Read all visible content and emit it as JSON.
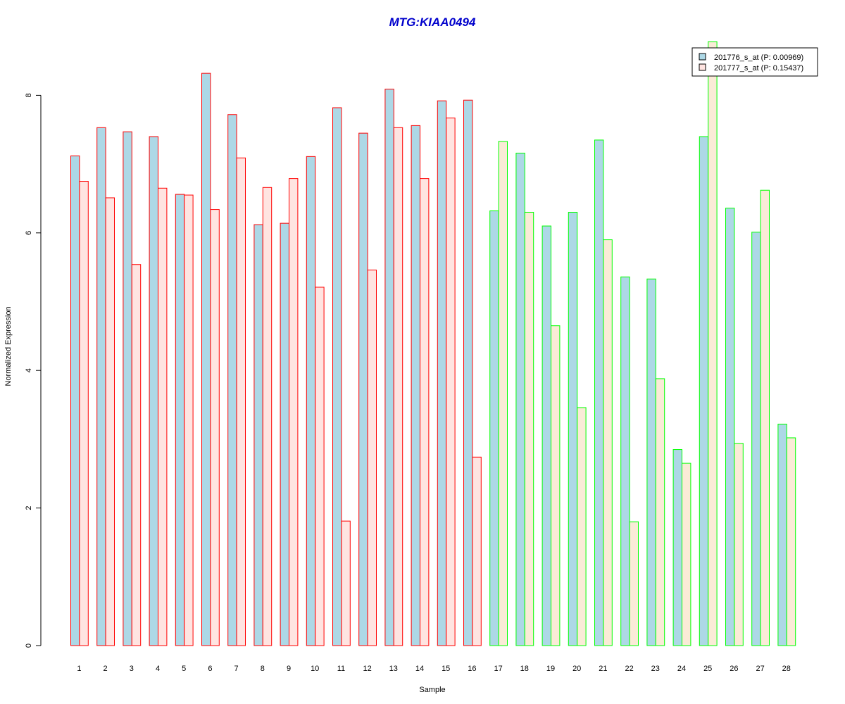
{
  "colors": {
    "title": "#0000CC",
    "series1_fill": "#ADD8E6",
    "series2_red_fill": "#FFE4E1",
    "series2_green_fill": "#FAEBD7",
    "group1_border": "#FF0000",
    "group2_border": "#00FF00",
    "axis": "#000000"
  },
  "chart_data": {
    "type": "bar",
    "title": "MTG:KIAA0494",
    "xlabel": "Sample",
    "ylabel": "Normalized Expression",
    "ylim": [
      0,
      9
    ],
    "yticks": [
      0,
      2,
      4,
      6,
      8
    ],
    "categories": [
      "1",
      "2",
      "3",
      "4",
      "5",
      "6",
      "7",
      "8",
      "9",
      "10",
      "11",
      "12",
      "13",
      "14",
      "15",
      "16",
      "17",
      "18",
      "19",
      "20",
      "21",
      "22",
      "23",
      "24",
      "25",
      "26",
      "27",
      "28"
    ],
    "group_border": [
      "red",
      "red",
      "red",
      "red",
      "red",
      "red",
      "red",
      "red",
      "red",
      "red",
      "red",
      "red",
      "red",
      "red",
      "red",
      "red",
      "green",
      "green",
      "green",
      "green",
      "green",
      "green",
      "green",
      "green",
      "green",
      "green",
      "green",
      "green"
    ],
    "series": [
      {
        "name": "201776_s_at (P: 0.00969)",
        "values": [
          7.12,
          7.53,
          7.47,
          7.4,
          6.56,
          8.32,
          7.72,
          6.12,
          6.14,
          7.11,
          7.82,
          7.45,
          8.09,
          7.56,
          7.92,
          7.93,
          6.32,
          7.16,
          6.1,
          6.3,
          7.35,
          5.36,
          5.33,
          2.85,
          7.4,
          6.36,
          6.01,
          3.22
        ]
      },
      {
        "name": "201777_s_at (P: 0.15437)",
        "values": [
          6.75,
          6.51,
          5.54,
          6.65,
          6.55,
          6.34,
          7.09,
          6.66,
          6.79,
          5.21,
          1.81,
          5.46,
          7.53,
          6.79,
          7.67,
          2.74,
          7.33,
          6.3,
          4.65,
          3.46,
          5.9,
          1.8,
          3.88,
          2.65,
          8.78,
          2.94,
          6.62,
          3.02
        ]
      }
    ],
    "legend_position": "top-right"
  }
}
